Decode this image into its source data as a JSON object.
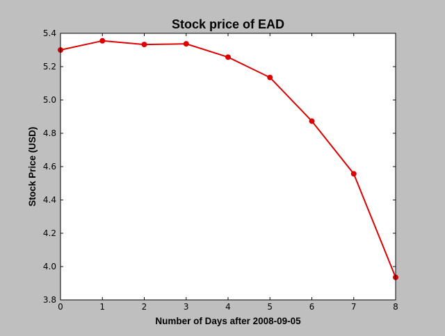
{
  "chart_data": {
    "type": "line",
    "title": "Stock price of EAD",
    "xlabel": "Number of Days after 2008-09-05",
    "ylabel": "Stock Price (USD)",
    "x": [
      0,
      1,
      2,
      3,
      4,
      5,
      6,
      7,
      8
    ],
    "series": [
      {
        "name": "",
        "color": "#dd0000",
        "values": [
          5.3,
          5.355,
          5.333,
          5.337,
          5.257,
          5.135,
          4.873,
          4.557,
          3.935
        ]
      }
    ],
    "xlim": [
      0,
      8
    ],
    "ylim": [
      3.8,
      5.4
    ],
    "xticks": [
      0,
      1,
      2,
      3,
      4,
      5,
      6,
      7,
      8
    ],
    "yticks": [
      3.8,
      4.0,
      4.2,
      4.4,
      4.6,
      4.8,
      5.0,
      5.2,
      5.4
    ],
    "ytick_labels": [
      "3.8",
      "4.0",
      "4.2",
      "4.4",
      "4.6",
      "4.8",
      "5.0",
      "5.2",
      "5.4"
    ],
    "grid": false,
    "figure_background": "#bfbfbf",
    "plot_background": "#ffffff"
  }
}
